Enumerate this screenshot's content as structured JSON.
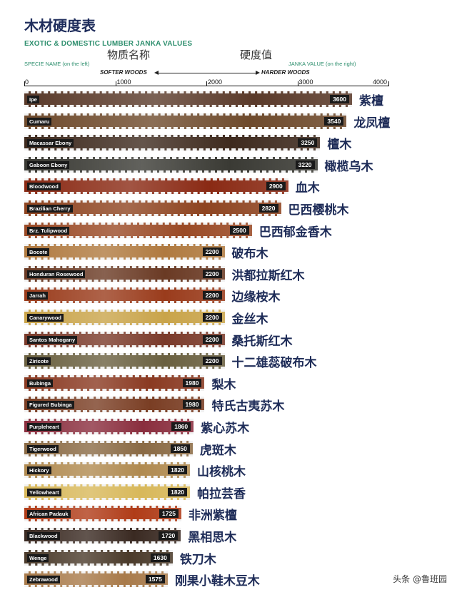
{
  "title": "木材硬度表",
  "subtitle": "EXOTIC & DOMESTIC LUMBER JANKA VALUES",
  "cn_left_label": "物质名称",
  "cn_right_label": "硬度值",
  "left_label": "SPECIE NAME (on the left)",
  "right_label": "JANKA VALUE (on the right)",
  "softer_label": "SOFTER WOODS",
  "harder_label": "HARDER WOODS",
  "watermark": "头条 @鲁班园",
  "chart_data": {
    "type": "bar",
    "orientation": "horizontal",
    "title": "EXOTIC & DOMESTIC LUMBER JANKA VALUES",
    "xlim": [
      0,
      4000
    ],
    "x_ticks": [
      "0",
      "1000",
      "2000",
      "3000",
      "4000"
    ],
    "categories": [
      "Ipe",
      "Cumaru",
      "Macassar Ebony",
      "Gaboon Ebony",
      "Bloodwood",
      "Brazilian Cherry",
      "Brz. Tulipwood",
      "Bocote",
      "Honduran Rosewood",
      "Jarrah",
      "Canarywood",
      "Santos Mahogany",
      "Ziricote",
      "Bubinga",
      "Figured Bubinga",
      "Purpleheart",
      "Tigerwood",
      "Hickory",
      "Yellowheart",
      "African Padauk",
      "Blackwood",
      "Wenge",
      "Zebrawood"
    ],
    "categories_cn": [
      "紫檀",
      "龙凤檀",
      "檀木",
      "橄榄乌木",
      "血木",
      "巴西樱桃木",
      "巴西郁金香木",
      "破布木",
      "洪都拉斯红木",
      "边缘桉木",
      "金丝木",
      "桑托斯红木",
      "十二雄蕊破布木",
      "梨木",
      "特氏古夷苏木",
      "紫心苏木",
      "虎斑木",
      "山核桃木",
      "帕拉芸香",
      "非洲紫檀",
      "黑相思木",
      "铁刀木",
      "刚果小鞋木豆木"
    ],
    "values": [
      3600,
      3540,
      3250,
      3220,
      2900,
      2820,
      2500,
      2200,
      2200,
      2200,
      2200,
      2200,
      2200,
      1980,
      1980,
      1860,
      1850,
      1820,
      1820,
      1725,
      1720,
      1630,
      1575
    ],
    "value_labels": [
      "3600",
      "3540",
      "3250",
      "3220",
      "2900",
      "2820",
      "2500",
      "2200",
      "2200",
      "2200",
      "2200",
      "2200",
      "2200",
      "1980",
      "1980",
      "1860",
      "1850",
      "1820",
      "1820",
      "1725",
      "1720",
      "1630",
      "1575"
    ],
    "colors": [
      "#5a3a2a",
      "#6e4a2c",
      "#3e2a1e",
      "#3a3a34",
      "#8a2a14",
      "#8e4420",
      "#9a4a26",
      "#b07a40",
      "#6a3a24",
      "#9a3c1c",
      "#c9a44a",
      "#7a3a2a",
      "#6a6040",
      "#8a3a22",
      "#7a3e24",
      "#8a2e3e",
      "#8a6a44",
      "#b08a50",
      "#d8b85a",
      "#b03c18",
      "#3a2a22",
      "#4a3a2a",
      "#a87a4a"
    ]
  }
}
